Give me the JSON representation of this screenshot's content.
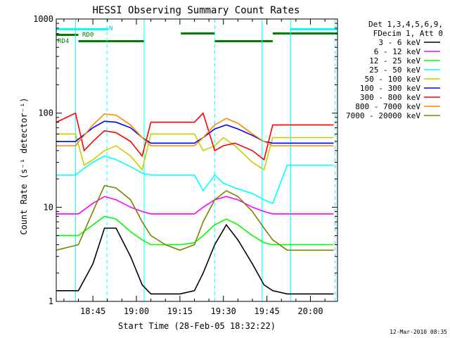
{
  "chart_data": {
    "type": "line",
    "title": "HESSI Observing Summary Count Rates",
    "xlabel": "Start Time (28-Feb-05 18:32:22)",
    "ylabel": "Count Rate (s⁻¹ detector⁻¹)",
    "yscale": "log",
    "ylim": [
      1,
      1000
    ],
    "xlim": [
      "18:32:22",
      "20:09:20"
    ],
    "y_ticks": [
      "1",
      "10",
      "100",
      "1000"
    ],
    "x_ticks": [
      "18:45",
      "19:00",
      "19:15",
      "19:30",
      "19:45",
      "20:00"
    ],
    "grid": false,
    "legend_position": "right",
    "legend_header": [
      "Det 1,3,4,5,6,9,",
      "FDecim 1, Att 0"
    ],
    "timestamp": "12-Mar-2010 08:35",
    "flag_labels": {
      "night": "N",
      "rd0": "RD0",
      "rd4": "RD4"
    },
    "flags": {
      "night": [
        [
          "18:32:22",
          "18:50:20"
        ],
        [
          "19:53:10",
          "20:09:20"
        ]
      ],
      "rd0": [
        [
          "18:32:22",
          "18:40:00"
        ]
      ],
      "rd4": [
        [
          "18:40:00",
          "19:02:40"
        ],
        [
          "19:15:20",
          "19:27:00"
        ],
        [
          "19:27:00",
          "19:47:00"
        ],
        [
          "19:47:00",
          "20:09:20"
        ]
      ]
    },
    "vlines_solid": [
      "18:39:00",
      "19:02:40",
      "19:43:20",
      "19:53:10"
    ],
    "vlines_dashed": [
      "18:49:50",
      "19:27:00",
      "20:08:30"
    ],
    "series": [
      {
        "name": "3 - 6 keV",
        "color": "#000000",
        "x": [
          "18:32:22",
          "18:40:00",
          "18:45:00",
          "18:49:00",
          "18:53:00",
          "18:58:00",
          "19:02:00",
          "19:05:00",
          "19:10:00",
          "19:15:00",
          "19:20:00",
          "19:23:00",
          "19:27:00",
          "19:31:00",
          "19:35:00",
          "19:40:00",
          "19:44:00",
          "19:47:00",
          "19:52:00",
          "20:00:00",
          "20:08:00"
        ],
        "values": [
          1.3,
          1.3,
          2.5,
          6,
          6,
          3,
          1.5,
          1.2,
          1.2,
          1.2,
          1.3,
          2,
          4,
          6.5,
          4.5,
          2.5,
          1.5,
          1.3,
          1.2,
          1.2,
          1.2
        ]
      },
      {
        "name": "6 - 12 keV",
        "color": "#ff00ff",
        "x": [
          "18:32:22",
          "18:40:00",
          "18:45:00",
          "18:49:00",
          "18:53:00",
          "18:58:00",
          "19:02:00",
          "19:05:00",
          "19:10:00",
          "19:15:00",
          "19:20:00",
          "19:23:00",
          "19:27:00",
          "19:31:00",
          "19:35:00",
          "19:40:00",
          "19:44:00",
          "19:47:00",
          "19:52:00",
          "20:00:00",
          "20:08:00"
        ],
        "values": [
          8.5,
          8.5,
          11,
          13,
          12,
          10,
          9,
          8.5,
          8.5,
          8.5,
          8.5,
          10,
          12,
          13,
          12,
          10,
          9,
          8.5,
          8.5,
          8.5,
          8.5
        ]
      },
      {
        "name": "12 - 25 keV",
        "color": "#00ff00",
        "x": [
          "18:32:22",
          "18:40:00",
          "18:45:00",
          "18:49:00",
          "18:53:00",
          "18:58:00",
          "19:02:00",
          "19:05:00",
          "19:10:00",
          "19:15:00",
          "19:20:00",
          "19:23:00",
          "19:27:00",
          "19:31:00",
          "19:35:00",
          "19:40:00",
          "19:44:00",
          "19:47:00",
          "19:52:00",
          "20:00:00",
          "20:08:00"
        ],
        "values": [
          5,
          5,
          6.5,
          8,
          7.5,
          5.5,
          4.5,
          4,
          4,
          4,
          4.2,
          5,
          6.5,
          7.5,
          6.5,
          5,
          4.2,
          4,
          4,
          4,
          4
        ]
      },
      {
        "name": "25 - 50 keV",
        "color": "#00ffff",
        "x": [
          "18:32:22",
          "18:39:00",
          "18:42:00",
          "18:45:00",
          "18:49:00",
          "18:53:00",
          "18:58:00",
          "19:02:00",
          "19:05:00",
          "19:10:00",
          "19:15:00",
          "19:20:00",
          "19:23:00",
          "19:27:00",
          "19:30:00",
          "19:34:00",
          "19:40:00",
          "19:44:00",
          "19:47:00",
          "19:52:00",
          "20:00:00",
          "20:08:00"
        ],
        "values": [
          22,
          22,
          26,
          30,
          35,
          32,
          27,
          23,
          22,
          22,
          22,
          22,
          15,
          22,
          18,
          16,
          14,
          12,
          11,
          28,
          28,
          28
        ]
      },
      {
        "name": "50 - 100 keV",
        "color": "#cccc00",
        "x": [
          "18:32:22",
          "18:39:00",
          "18:42:00",
          "18:45:00",
          "18:49:00",
          "18:53:00",
          "18:58:00",
          "19:02:00",
          "19:05:00",
          "19:10:00",
          "19:15:00",
          "19:20:00",
          "19:23:00",
          "19:27:00",
          "19:30:00",
          "19:34:00",
          "19:40:00",
          "19:44:00",
          "19:47:00",
          "19:52:00",
          "20:00:00",
          "20:08:00"
        ],
        "values": [
          60,
          60,
          28,
          32,
          40,
          45,
          35,
          25,
          60,
          60,
          60,
          60,
          40,
          45,
          55,
          45,
          30,
          25,
          55,
          55,
          55,
          55
        ]
      },
      {
        "name": "100 - 300 keV",
        "color": "#0000ff",
        "x": [
          "18:32:22",
          "18:39:00",
          "18:45:00",
          "18:49:00",
          "18:53:00",
          "18:58:00",
          "19:02:00",
          "19:05:00",
          "19:10:00",
          "19:15:00",
          "19:20:00",
          "19:23:00",
          "19:27:00",
          "19:31:00",
          "19:35:00",
          "19:40:00",
          "19:44:00",
          "19:47:00",
          "19:52:00",
          "20:00:00",
          "20:08:00"
        ],
        "values": [
          50,
          50,
          70,
          82,
          80,
          70,
          55,
          48,
          48,
          48,
          48,
          55,
          68,
          75,
          68,
          58,
          50,
          48,
          48,
          48,
          48
        ]
      },
      {
        "name": "300 - 800 keV",
        "color": "#ff0000",
        "x": [
          "18:32:22",
          "18:39:00",
          "18:42:00",
          "18:45:00",
          "18:49:00",
          "18:53:00",
          "18:58:00",
          "19:02:00",
          "19:05:00",
          "19:10:00",
          "19:15:00",
          "19:20:00",
          "19:23:00",
          "19:27:00",
          "19:30:00",
          "19:34:00",
          "19:40:00",
          "19:44:00",
          "19:47:00",
          "19:52:00",
          "20:00:00",
          "20:08:00"
        ],
        "values": [
          80,
          100,
          40,
          50,
          65,
          62,
          50,
          35,
          80,
          80,
          80,
          80,
          100,
          40,
          45,
          48,
          40,
          32,
          75,
          75,
          75,
          75
        ]
      },
      {
        "name": "800 - 7000 keV",
        "color": "#ff8800",
        "x": [
          "18:32:22",
          "18:39:00",
          "18:45:00",
          "18:49:00",
          "18:53:00",
          "18:58:00",
          "19:02:00",
          "19:05:00",
          "19:10:00",
          "19:15:00",
          "19:20:00",
          "19:23:00",
          "19:27:00",
          "19:31:00",
          "19:35:00",
          "19:40:00",
          "19:44:00",
          "19:47:00",
          "19:52:00",
          "20:00:00",
          "20:08:00"
        ],
        "values": [
          45,
          45,
          75,
          98,
          95,
          75,
          55,
          45,
          45,
          45,
          45,
          55,
          75,
          88,
          78,
          60,
          50,
          45,
          45,
          45,
          45
        ]
      },
      {
        "name": "7000 - 20000 keV",
        "color": "#808000",
        "x": [
          "18:32:22",
          "18:40:00",
          "18:45:00",
          "18:49:00",
          "18:53:00",
          "18:58:00",
          "19:02:00",
          "19:05:00",
          "19:10:00",
          "19:15:00",
          "19:20:00",
          "19:23:00",
          "19:27:00",
          "19:31:00",
          "19:35:00",
          "19:40:00",
          "19:44:00",
          "19:47:00",
          "19:52:00",
          "20:00:00",
          "20:08:00"
        ],
        "values": [
          3.5,
          4,
          9,
          17,
          16,
          12,
          7,
          5,
          4,
          3.5,
          4,
          7,
          12,
          15,
          13,
          9,
          6,
          4.5,
          3.5,
          3.5,
          3.5
        ]
      }
    ]
  }
}
